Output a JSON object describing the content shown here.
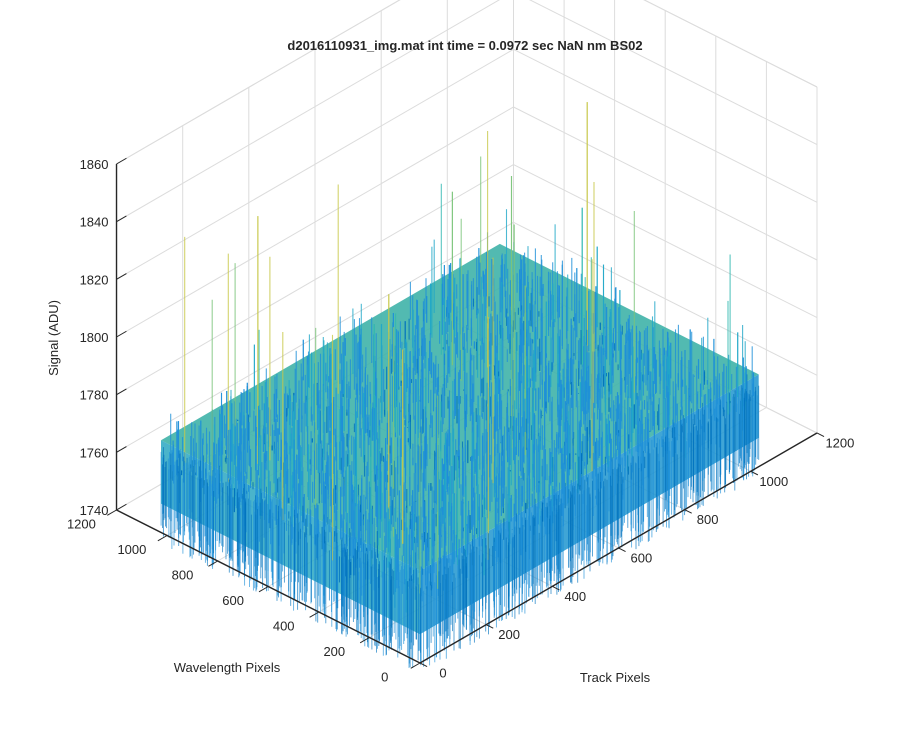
{
  "chart_data": {
    "type": "surface",
    "title": "d2016110931_img.mat int time = 0.0972 sec  NaN nm BS02",
    "xlabel": "Track Pixels",
    "ylabel": "Wavelength Pixels",
    "zlabel": "Signal (ADU)",
    "x_ticks": [
      "0",
      "200",
      "400",
      "600",
      "800",
      "1000",
      "1200"
    ],
    "y_ticks": [
      "0",
      "200",
      "400",
      "600",
      "800",
      "1000",
      "1200"
    ],
    "z_ticks": [
      "1740",
      "1760",
      "1780",
      "1800",
      "1820",
      "1840",
      "1860"
    ],
    "xlim": [
      0,
      1200
    ],
    "ylim": [
      0,
      1200
    ],
    "zlim": [
      1740,
      1860
    ],
    "data_extent": {
      "x": [
        0,
        1024
      ],
      "y": [
        0,
        1024
      ]
    },
    "signal_summary": {
      "mean": 1772,
      "typical_min": 1750,
      "typical_max": 1800,
      "max_peak": 1845
    },
    "colormap": [
      "#0072BD",
      "#1E90D8",
      "#20A8C8",
      "#30B8B0",
      "#7CC47A",
      "#C8C84A"
    ],
    "grid": true,
    "view": "3d-isometric"
  }
}
